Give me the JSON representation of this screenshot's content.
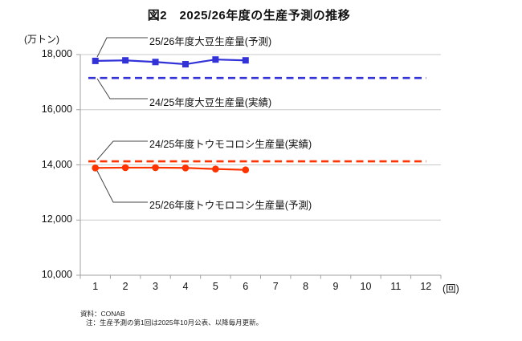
{
  "title": "図2　2025/26年度の生産予測の推移",
  "y_axis_unit": "(万トン)",
  "x_axis_unit": "(回)",
  "notes": {
    "source": "資料：CONAB",
    "update": "注：生産予測の第1回は2025年10月公表、以降毎月更新。"
  },
  "colors": {
    "soybean_blue": "#3232d8",
    "corn_red": "#ff3300",
    "gridline": "#c9c9c9",
    "axis": "#a0a0a0",
    "leader_line": "#444444",
    "text": "#111111"
  },
  "chart_data": {
    "type": "line",
    "title": "図2　2025/26年度の生産予測の推移",
    "xlabel": "(回)",
    "ylabel": "(万トン)",
    "x_categories": [
      "1",
      "2",
      "3",
      "4",
      "5",
      "6",
      "7",
      "8",
      "9",
      "10",
      "11",
      "12"
    ],
    "ylim": [
      10000,
      18000
    ],
    "y_ticks": [
      {
        "label": "18,000",
        "value": 18000
      },
      {
        "label": "16,000",
        "value": 16000
      },
      {
        "label": "14,000",
        "value": 14000
      },
      {
        "label": "12,000",
        "value": 12000
      },
      {
        "label": "10,000",
        "value": 10000
      }
    ],
    "grid": "horizontal",
    "legend_position": "inline-annotations",
    "series": [
      {
        "name": "25/26年度大豆生産量(予測)",
        "color": "#3232d8",
        "line_style": "solid",
        "marker": "square",
        "x": [
          1,
          2,
          3,
          4,
          5,
          6
        ],
        "values": [
          17770,
          17790,
          17730,
          17650,
          17820,
          17790
        ]
      },
      {
        "name": "24/25年度大豆生産量(実績)",
        "color": "#3232d8",
        "line_style": "dashed",
        "marker": "none",
        "constant": 17150
      },
      {
        "name": "24/25年度トウモコロシ生産量(実績)",
        "color": "#ff3300",
        "line_style": "dashed",
        "marker": "none",
        "constant": 14130
      },
      {
        "name": "25/26年度トウモロコシ生産量(予測)",
        "color": "#ff3300",
        "line_style": "solid",
        "marker": "circle",
        "x": [
          1,
          2,
          3,
          4,
          5,
          6
        ],
        "values": [
          13890,
          13900,
          13900,
          13890,
          13850,
          13820
        ]
      }
    ]
  }
}
